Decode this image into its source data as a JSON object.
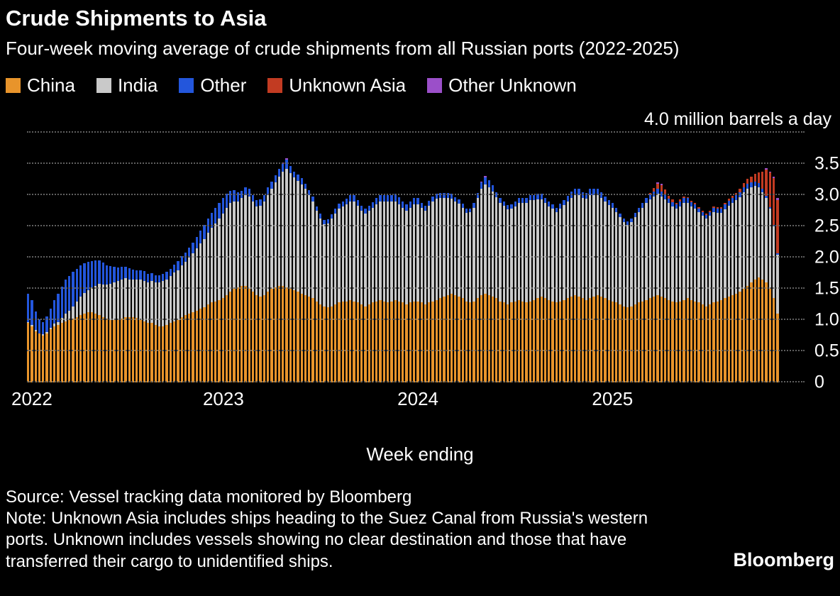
{
  "header": {
    "title": "Crude Shipments to Asia",
    "subtitle": "Four-week moving average of crude shipments from all Russian ports (2022-2025)"
  },
  "legend": [
    {
      "label": "China",
      "color": "#E8942B"
    },
    {
      "label": "India",
      "color": "#C9C9C9"
    },
    {
      "label": "Other",
      "color": "#2356DC"
    },
    {
      "label": "Unknown Asia",
      "color": "#C23B22"
    },
    {
      "label": "Other Unknown",
      "color": "#9B4FC9"
    }
  ],
  "footer": {
    "source": "Source: Vessel tracking data monitored by Bloomberg",
    "note": "Note: Unknown Asia includes ships heading to the Suez Canal from Russia's western ports. Unknown includes vessels showing no clear destination and those that have transferred their cargo to unidentified ships.",
    "logo": "Bloomberg"
  },
  "chart_data": {
    "type": "bar",
    "stacked": true,
    "title": "Crude Shipments to Asia",
    "xlabel": "Week ending",
    "y_top_label": "4.0 million barrels a day",
    "unit": "million barrels a day",
    "ylim": [
      0,
      4.0
    ],
    "ytick_step": 0.5,
    "yticks": [
      "0",
      "0.5",
      "1.0",
      "1.5",
      "2.0",
      "2.5",
      "3.0",
      "3.5"
    ],
    "x_years": [
      "2022",
      "2023",
      "2024",
      "2025"
    ],
    "x_year_start_index": [
      0,
      52,
      104,
      156
    ],
    "grid": true,
    "legend_position": "top",
    "series": [
      {
        "name": "China",
        "color": "#E8942B",
        "values": [
          0.95,
          0.9,
          0.82,
          0.78,
          0.75,
          0.78,
          0.85,
          0.9,
          0.92,
          0.95,
          0.98,
          1.0,
          1.02,
          1.05,
          1.08,
          1.1,
          1.12,
          1.12,
          1.1,
          1.08,
          1.05,
          1.02,
          1.0,
          1.0,
          1.0,
          1.02,
          1.05,
          1.05,
          1.05,
          1.03,
          1.0,
          0.98,
          0.95,
          0.95,
          0.92,
          0.9,
          0.9,
          0.92,
          0.95,
          0.98,
          1.0,
          1.05,
          1.08,
          1.1,
          1.12,
          1.15,
          1.18,
          1.2,
          1.25,
          1.28,
          1.3,
          1.32,
          1.35,
          1.4,
          1.45,
          1.5,
          1.52,
          1.55,
          1.55,
          1.5,
          1.45,
          1.4,
          1.38,
          1.4,
          1.45,
          1.5,
          1.52,
          1.55,
          1.55,
          1.52,
          1.5,
          1.48,
          1.45,
          1.42,
          1.4,
          1.38,
          1.35,
          1.3,
          1.25,
          1.22,
          1.2,
          1.22,
          1.25,
          1.28,
          1.3,
          1.3,
          1.32,
          1.3,
          1.28,
          1.25,
          1.22,
          1.25,
          1.28,
          1.3,
          1.32,
          1.3,
          1.28,
          1.3,
          1.32,
          1.3,
          1.28,
          1.25,
          1.28,
          1.3,
          1.3,
          1.28,
          1.25,
          1.28,
          1.3,
          1.32,
          1.35,
          1.38,
          1.4,
          1.42,
          1.4,
          1.38,
          1.35,
          1.3,
          1.28,
          1.3,
          1.35,
          1.4,
          1.42,
          1.4,
          1.38,
          1.35,
          1.3,
          1.28,
          1.25,
          1.28,
          1.3,
          1.32,
          1.3,
          1.28,
          1.3,
          1.32,
          1.35,
          1.38,
          1.35,
          1.32,
          1.3,
          1.28,
          1.3,
          1.32,
          1.35,
          1.38,
          1.4,
          1.38,
          1.35,
          1.32,
          1.35,
          1.38,
          1.4,
          1.38,
          1.35,
          1.32,
          1.3,
          1.28,
          1.25,
          1.22,
          1.2,
          1.22,
          1.25,
          1.28,
          1.3,
          1.32,
          1.35,
          1.38,
          1.4,
          1.38,
          1.35,
          1.32,
          1.3,
          1.28,
          1.3,
          1.32,
          1.35,
          1.32,
          1.3,
          1.28,
          1.25,
          1.22,
          1.25,
          1.28,
          1.3,
          1.32,
          1.35,
          1.38,
          1.4,
          1.42,
          1.45,
          1.5,
          1.55,
          1.6,
          1.65,
          1.68,
          1.65,
          1.6,
          1.5,
          1.35,
          1.1
        ]
      },
      {
        "name": "India",
        "color": "#C9C9C9",
        "values": [
          0.02,
          0.02,
          0.02,
          0.01,
          0.02,
          0.03,
          0.03,
          0.04,
          0.05,
          0.08,
          0.12,
          0.15,
          0.2,
          0.25,
          0.3,
          0.33,
          0.36,
          0.4,
          0.45,
          0.5,
          0.52,
          0.55,
          0.58,
          0.6,
          0.62,
          0.63,
          0.62,
          0.6,
          0.6,
          0.62,
          0.65,
          0.65,
          0.65,
          0.67,
          0.68,
          0.7,
          0.72,
          0.73,
          0.75,
          0.78,
          0.8,
          0.82,
          0.85,
          0.9,
          0.95,
          1.0,
          1.05,
          1.1,
          1.15,
          1.2,
          1.25,
          1.3,
          1.35,
          1.4,
          1.42,
          1.4,
          1.38,
          1.4,
          1.45,
          1.48,
          1.45,
          1.42,
          1.45,
          1.5,
          1.55,
          1.6,
          1.68,
          1.75,
          1.82,
          1.9,
          1.85,
          1.8,
          1.78,
          1.75,
          1.7,
          1.62,
          1.55,
          1.45,
          1.38,
          1.32,
          1.35,
          1.4,
          1.45,
          1.5,
          1.52,
          1.55,
          1.58,
          1.6,
          1.55,
          1.5,
          1.48,
          1.5,
          1.52,
          1.55,
          1.58,
          1.6,
          1.62,
          1.6,
          1.58,
          1.55,
          1.52,
          1.5,
          1.52,
          1.55,
          1.55,
          1.52,
          1.5,
          1.55,
          1.6,
          1.62,
          1.6,
          1.58,
          1.55,
          1.52,
          1.5,
          1.48,
          1.45,
          1.42,
          1.45,
          1.5,
          1.6,
          1.7,
          1.75,
          1.72,
          1.68,
          1.62,
          1.58,
          1.55,
          1.52,
          1.5,
          1.52,
          1.55,
          1.58,
          1.6,
          1.62,
          1.6,
          1.58,
          1.55,
          1.52,
          1.5,
          1.48,
          1.45,
          1.48,
          1.52,
          1.55,
          1.58,
          1.6,
          1.62,
          1.6,
          1.62,
          1.65,
          1.62,
          1.6,
          1.58,
          1.55,
          1.52,
          1.5,
          1.45,
          1.4,
          1.35,
          1.32,
          1.35,
          1.4,
          1.45,
          1.5,
          1.55,
          1.58,
          1.6,
          1.62,
          1.6,
          1.58,
          1.55,
          1.52,
          1.5,
          1.52,
          1.55,
          1.52,
          1.5,
          1.48,
          1.45,
          1.42,
          1.4,
          1.42,
          1.45,
          1.42,
          1.4,
          1.42,
          1.45,
          1.48,
          1.5,
          1.52,
          1.55,
          1.55,
          1.52,
          1.5,
          1.45,
          1.4,
          1.35,
          1.28,
          1.15,
          0.95
        ]
      },
      {
        "name": "Other",
        "color": "#2356DC",
        "values": [
          0.45,
          0.4,
          0.3,
          0.22,
          0.2,
          0.25,
          0.3,
          0.38,
          0.45,
          0.5,
          0.55,
          0.55,
          0.55,
          0.52,
          0.5,
          0.48,
          0.45,
          0.42,
          0.4,
          0.38,
          0.35,
          0.3,
          0.28,
          0.25,
          0.22,
          0.2,
          0.18,
          0.18,
          0.16,
          0.15,
          0.15,
          0.15,
          0.14,
          0.13,
          0.12,
          0.12,
          0.12,
          0.12,
          0.12,
          0.13,
          0.14,
          0.15,
          0.15,
          0.16,
          0.17,
          0.18,
          0.2,
          0.22,
          0.23,
          0.24,
          0.25,
          0.25,
          0.25,
          0.22,
          0.2,
          0.18,
          0.15,
          0.12,
          0.12,
          0.12,
          0.1,
          0.1,
          0.1,
          0.1,
          0.12,
          0.12,
          0.12,
          0.12,
          0.13,
          0.15,
          0.12,
          0.1,
          0.1,
          0.1,
          0.08,
          0.08,
          0.08,
          0.07,
          0.07,
          0.06,
          0.06,
          0.07,
          0.08,
          0.08,
          0.08,
          0.09,
          0.1,
          0.1,
          0.09,
          0.08,
          0.08,
          0.08,
          0.09,
          0.1,
          0.1,
          0.1,
          0.1,
          0.1,
          0.12,
          0.12,
          0.1,
          0.1,
          0.1,
          0.1,
          0.1,
          0.08,
          0.08,
          0.08,
          0.08,
          0.08,
          0.08,
          0.08,
          0.08,
          0.08,
          0.07,
          0.07,
          0.06,
          0.06,
          0.06,
          0.07,
          0.08,
          0.1,
          0.12,
          0.12,
          0.1,
          0.08,
          0.08,
          0.07,
          0.07,
          0.07,
          0.08,
          0.08,
          0.08,
          0.08,
          0.08,
          0.08,
          0.09,
          0.09,
          0.08,
          0.08,
          0.07,
          0.07,
          0.08,
          0.08,
          0.09,
          0.1,
          0.1,
          0.1,
          0.1,
          0.1,
          0.1,
          0.1,
          0.1,
          0.09,
          0.08,
          0.08,
          0.08,
          0.07,
          0.06,
          0.06,
          0.06,
          0.06,
          0.07,
          0.07,
          0.08,
          0.08,
          0.08,
          0.08,
          0.08,
          0.08,
          0.08,
          0.07,
          0.07,
          0.07,
          0.08,
          0.08,
          0.08,
          0.07,
          0.07,
          0.06,
          0.06,
          0.06,
          0.06,
          0.07,
          0.07,
          0.07,
          0.08,
          0.08,
          0.08,
          0.08,
          0.08,
          0.08,
          0.08,
          0.08,
          0.07,
          0.06,
          0.05,
          0.04,
          0.03,
          0.02,
          0.02
        ]
      },
      {
        "name": "Unknown Asia",
        "color": "#C23B22",
        "values": [
          0,
          0,
          0,
          0,
          0,
          0,
          0,
          0,
          0,
          0,
          0,
          0,
          0,
          0,
          0,
          0,
          0,
          0,
          0,
          0,
          0,
          0,
          0,
          0,
          0,
          0,
          0,
          0,
          0,
          0,
          0,
          0,
          0,
          0,
          0,
          0,
          0,
          0,
          0,
          0,
          0,
          0,
          0,
          0,
          0,
          0,
          0,
          0,
          0,
          0,
          0,
          0,
          0,
          0,
          0,
          0,
          0,
          0,
          0,
          0,
          0,
          0,
          0,
          0,
          0,
          0,
          0,
          0,
          0,
          0,
          0,
          0,
          0,
          0,
          0,
          0,
          0,
          0,
          0,
          0,
          0,
          0,
          0,
          0,
          0,
          0,
          0,
          0,
          0,
          0,
          0,
          0,
          0,
          0,
          0,
          0,
          0,
          0,
          0,
          0,
          0,
          0,
          0,
          0,
          0,
          0,
          0,
          0,
          0,
          0,
          0,
          0,
          0,
          0,
          0,
          0,
          0,
          0,
          0,
          0,
          0,
          0,
          0,
          0,
          0,
          0,
          0,
          0,
          0,
          0,
          0,
          0,
          0,
          0,
          0,
          0,
          0,
          0,
          0,
          0,
          0,
          0,
          0,
          0,
          0,
          0,
          0,
          0,
          0,
          0,
          0,
          0,
          0,
          0,
          0,
          0,
          0,
          0,
          0,
          0,
          0,
          0,
          0,
          0,
          0,
          0,
          0.03,
          0.05,
          0.08,
          0.1,
          0.08,
          0.05,
          0.04,
          0.03,
          0.03,
          0.03,
          0.02,
          0.02,
          0.02,
          0.02,
          0.02,
          0.02,
          0.02,
          0.02,
          0.02,
          0.02,
          0.02,
          0.03,
          0.03,
          0.04,
          0.05,
          0.06,
          0.08,
          0.1,
          0.12,
          0.18,
          0.28,
          0.42,
          0.55,
          0.75,
          0.85
        ]
      },
      {
        "name": "Other Unknown",
        "color": "#9B4FC9",
        "values": [
          0,
          0,
          0,
          0,
          0,
          0,
          0,
          0,
          0,
          0,
          0,
          0,
          0,
          0,
          0,
          0,
          0,
          0,
          0,
          0,
          0,
          0,
          0,
          0,
          0,
          0,
          0,
          0,
          0,
          0,
          0,
          0,
          0,
          0,
          0,
          0,
          0,
          0,
          0,
          0,
          0,
          0,
          0,
          0,
          0,
          0,
          0,
          0,
          0,
          0,
          0,
          0,
          0,
          0,
          0,
          0,
          0,
          0,
          0,
          0,
          0,
          0,
          0,
          0,
          0,
          0,
          0,
          0,
          0.02,
          0.02,
          0,
          0,
          0,
          0,
          0,
          0,
          0,
          0,
          0,
          0,
          0,
          0,
          0,
          0,
          0,
          0,
          0,
          0,
          0,
          0,
          0,
          0,
          0,
          0,
          0,
          0,
          0,
          0,
          0,
          0,
          0,
          0,
          0,
          0,
          0,
          0,
          0,
          0,
          0,
          0,
          0,
          0,
          0,
          0,
          0,
          0,
          0,
          0,
          0,
          0,
          0,
          0.02,
          0.02,
          0,
          0,
          0,
          0,
          0,
          0,
          0,
          0,
          0,
          0,
          0,
          0,
          0,
          0,
          0,
          0,
          0,
          0,
          0,
          0,
          0,
          0,
          0,
          0,
          0,
          0,
          0,
          0,
          0,
          0,
          0,
          0,
          0,
          0,
          0,
          0,
          0,
          0,
          0,
          0,
          0,
          0,
          0,
          0,
          0,
          0.02,
          0.02,
          0,
          0,
          0,
          0,
          0,
          0,
          0,
          0,
          0,
          0,
          0,
          0,
          0,
          0,
          0,
          0,
          0,
          0,
          0,
          0,
          0,
          0,
          0,
          0,
          0,
          0,
          0,
          0.02,
          0.02,
          0.03,
          0.03
        ]
      }
    ]
  }
}
